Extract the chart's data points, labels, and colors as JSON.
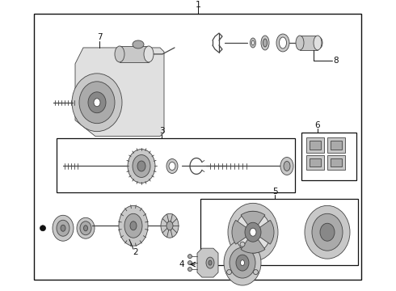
{
  "bg_color": "#ffffff",
  "line_color": "#444444",
  "gray1": "#e0e0e0",
  "gray2": "#c8c8c8",
  "gray3": "#aaaaaa",
  "gray4": "#888888",
  "white": "#ffffff",
  "black": "#111111"
}
